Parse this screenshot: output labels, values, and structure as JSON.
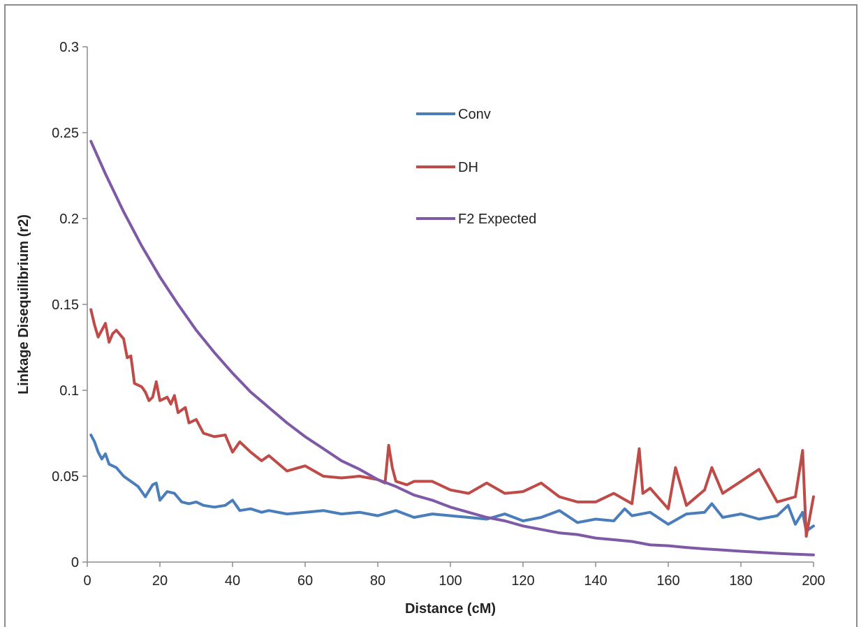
{
  "chart_data": {
    "type": "line",
    "title": "",
    "xlabel": "Distance (cM)",
    "ylabel": "Linkage Disequilibrium (r2)",
    "xlim": [
      0,
      200
    ],
    "ylim": [
      0,
      0.3
    ],
    "x_ticks": [
      "0",
      "20",
      "40",
      "60",
      "80",
      "100",
      "120",
      "140",
      "160",
      "180",
      "200"
    ],
    "y_ticks": [
      "0",
      "0.05",
      "0.1",
      "0.15",
      "0.2",
      "0.25",
      "0.3"
    ],
    "grid": false,
    "legend_position": "inside-center",
    "series": [
      {
        "name": "Conv",
        "color": "#4a7ebb",
        "x": [
          1,
          2,
          3,
          4,
          5,
          6,
          8,
          10,
          12,
          14,
          16,
          18,
          19,
          20,
          22,
          24,
          26,
          28,
          30,
          32,
          35,
          38,
          40,
          42,
          45,
          48,
          50,
          55,
          60,
          65,
          70,
          75,
          80,
          85,
          90,
          95,
          100,
          105,
          110,
          115,
          120,
          125,
          130,
          135,
          140,
          145,
          148,
          150,
          155,
          160,
          165,
          170,
          172,
          175,
          180,
          185,
          190,
          193,
          195,
          197,
          198,
          200
        ],
        "values": [
          0.074,
          0.07,
          0.064,
          0.06,
          0.063,
          0.057,
          0.055,
          0.05,
          0.047,
          0.044,
          0.038,
          0.045,
          0.046,
          0.036,
          0.041,
          0.04,
          0.035,
          0.034,
          0.035,
          0.033,
          0.032,
          0.033,
          0.036,
          0.03,
          0.031,
          0.029,
          0.03,
          0.028,
          0.029,
          0.03,
          0.028,
          0.029,
          0.027,
          0.03,
          0.026,
          0.028,
          0.027,
          0.026,
          0.025,
          0.028,
          0.024,
          0.026,
          0.03,
          0.023,
          0.025,
          0.024,
          0.031,
          0.027,
          0.029,
          0.022,
          0.028,
          0.029,
          0.034,
          0.026,
          0.028,
          0.025,
          0.027,
          0.033,
          0.022,
          0.029,
          0.018,
          0.021
        ]
      },
      {
        "name": "DH",
        "color": "#be4b48",
        "x": [
          1,
          2,
          3,
          4,
          5,
          6,
          7,
          8,
          10,
          11,
          12,
          13,
          14,
          15,
          16,
          17,
          18,
          19,
          20,
          22,
          23,
          24,
          25,
          27,
          28,
          30,
          32,
          35,
          38,
          40,
          42,
          45,
          48,
          50,
          55,
          60,
          65,
          70,
          75,
          80,
          82,
          83,
          84,
          85,
          88,
          90,
          95,
          100,
          105,
          110,
          115,
          120,
          125,
          130,
          135,
          140,
          145,
          150,
          152,
          153,
          155,
          160,
          162,
          165,
          170,
          172,
          175,
          180,
          185,
          190,
          195,
          197,
          198,
          200
        ],
        "values": [
          0.147,
          0.138,
          0.131,
          0.135,
          0.139,
          0.128,
          0.133,
          0.135,
          0.13,
          0.119,
          0.12,
          0.104,
          0.103,
          0.102,
          0.099,
          0.094,
          0.096,
          0.105,
          0.094,
          0.096,
          0.092,
          0.097,
          0.087,
          0.09,
          0.081,
          0.083,
          0.075,
          0.073,
          0.074,
          0.064,
          0.07,
          0.064,
          0.059,
          0.062,
          0.053,
          0.056,
          0.05,
          0.049,
          0.05,
          0.048,
          0.046,
          0.068,
          0.055,
          0.047,
          0.045,
          0.047,
          0.047,
          0.042,
          0.04,
          0.046,
          0.04,
          0.041,
          0.046,
          0.038,
          0.035,
          0.035,
          0.04,
          0.034,
          0.066,
          0.04,
          0.043,
          0.031,
          0.055,
          0.033,
          0.042,
          0.055,
          0.04,
          0.047,
          0.054,
          0.035,
          0.038,
          0.065,
          0.015,
          0.038
        ]
      },
      {
        "name": "F2 Expected",
        "color": "#7e59a5",
        "x": [
          1,
          5,
          10,
          15,
          20,
          25,
          30,
          35,
          40,
          45,
          50,
          55,
          60,
          65,
          70,
          75,
          80,
          85,
          90,
          95,
          100,
          105,
          110,
          115,
          120,
          125,
          130,
          135,
          140,
          145,
          150,
          155,
          160,
          165,
          170,
          175,
          180,
          185,
          190,
          195,
          200
        ],
        "values": [
          0.245,
          0.226,
          0.204,
          0.184,
          0.166,
          0.15,
          0.135,
          0.122,
          0.11,
          0.099,
          0.09,
          0.081,
          0.073,
          0.066,
          0.059,
          0.054,
          0.048,
          0.044,
          0.039,
          0.036,
          0.032,
          0.029,
          0.026,
          0.024,
          0.021,
          0.019,
          0.017,
          0.016,
          0.014,
          0.013,
          0.012,
          0.01,
          0.0095,
          0.0085,
          0.0077,
          0.007,
          0.0063,
          0.0057,
          0.0051,
          0.0046,
          0.0042
        ]
      }
    ]
  }
}
